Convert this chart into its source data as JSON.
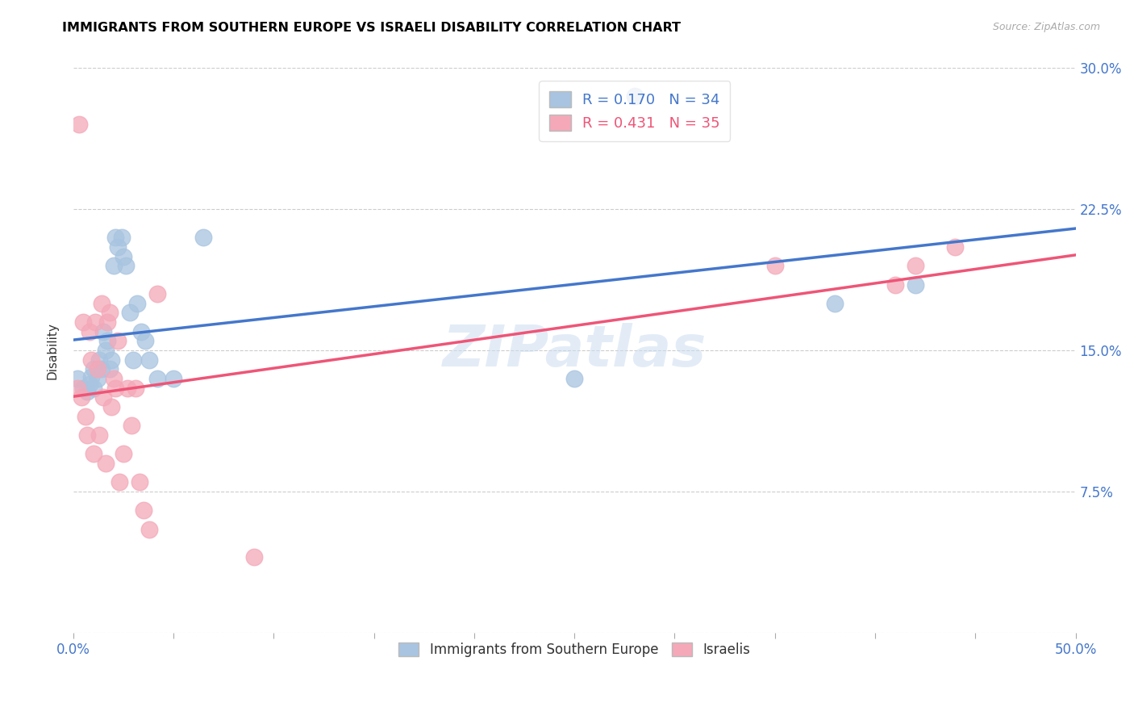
{
  "title": "IMMIGRANTS FROM SOUTHERN EUROPE VS ISRAELI DISABILITY CORRELATION CHART",
  "source": "Source: ZipAtlas.com",
  "ylabel": "Disability",
  "xlim": [
    0.0,
    0.5
  ],
  "ylim": [
    0.0,
    0.3
  ],
  "xticks": [
    0.0,
    0.05,
    0.1,
    0.15,
    0.2,
    0.25,
    0.3,
    0.35,
    0.4,
    0.45,
    0.5
  ],
  "yticks": [
    0.0,
    0.075,
    0.15,
    0.225,
    0.3
  ],
  "ytick_labels": [
    "",
    "7.5%",
    "15.0%",
    "22.5%",
    "30.0%"
  ],
  "xtick_labels": [
    "0.0%",
    "",
    "",
    "",
    "",
    "",
    "",
    "",
    "",
    "",
    "50.0%"
  ],
  "blue_R": 0.17,
  "blue_N": 34,
  "pink_R": 0.431,
  "pink_N": 35,
  "blue_color": "#A8C4E0",
  "pink_color": "#F4A8B8",
  "blue_line_color": "#4477CC",
  "pink_line_color": "#EE5577",
  "text_color": "#4477CC",
  "watermark": "ZIPatlas",
  "blue_x": [
    0.002,
    0.005,
    0.007,
    0.008,
    0.009,
    0.01,
    0.01,
    0.012,
    0.013,
    0.014,
    0.015,
    0.016,
    0.017,
    0.018,
    0.019,
    0.02,
    0.021,
    0.022,
    0.024,
    0.025,
    0.026,
    0.028,
    0.03,
    0.032,
    0.034,
    0.036,
    0.038,
    0.042,
    0.05,
    0.065,
    0.25,
    0.28,
    0.38,
    0.42
  ],
  "blue_y": [
    0.135,
    0.13,
    0.128,
    0.132,
    0.136,
    0.14,
    0.13,
    0.135,
    0.145,
    0.14,
    0.16,
    0.15,
    0.155,
    0.14,
    0.145,
    0.195,
    0.21,
    0.205,
    0.21,
    0.2,
    0.195,
    0.17,
    0.145,
    0.175,
    0.16,
    0.155,
    0.145,
    0.135,
    0.135,
    0.21,
    0.135,
    0.285,
    0.175,
    0.185
  ],
  "pink_x": [
    0.002,
    0.003,
    0.004,
    0.005,
    0.006,
    0.007,
    0.008,
    0.009,
    0.01,
    0.011,
    0.012,
    0.013,
    0.014,
    0.015,
    0.016,
    0.017,
    0.018,
    0.019,
    0.02,
    0.021,
    0.022,
    0.023,
    0.025,
    0.027,
    0.029,
    0.031,
    0.033,
    0.035,
    0.038,
    0.042,
    0.09,
    0.35,
    0.41,
    0.42,
    0.44
  ],
  "pink_y": [
    0.13,
    0.27,
    0.125,
    0.165,
    0.115,
    0.105,
    0.16,
    0.145,
    0.095,
    0.165,
    0.14,
    0.105,
    0.175,
    0.125,
    0.09,
    0.165,
    0.17,
    0.12,
    0.135,
    0.13,
    0.155,
    0.08,
    0.095,
    0.13,
    0.11,
    0.13,
    0.08,
    0.065,
    0.055,
    0.18,
    0.04,
    0.195,
    0.185,
    0.195,
    0.205
  ]
}
